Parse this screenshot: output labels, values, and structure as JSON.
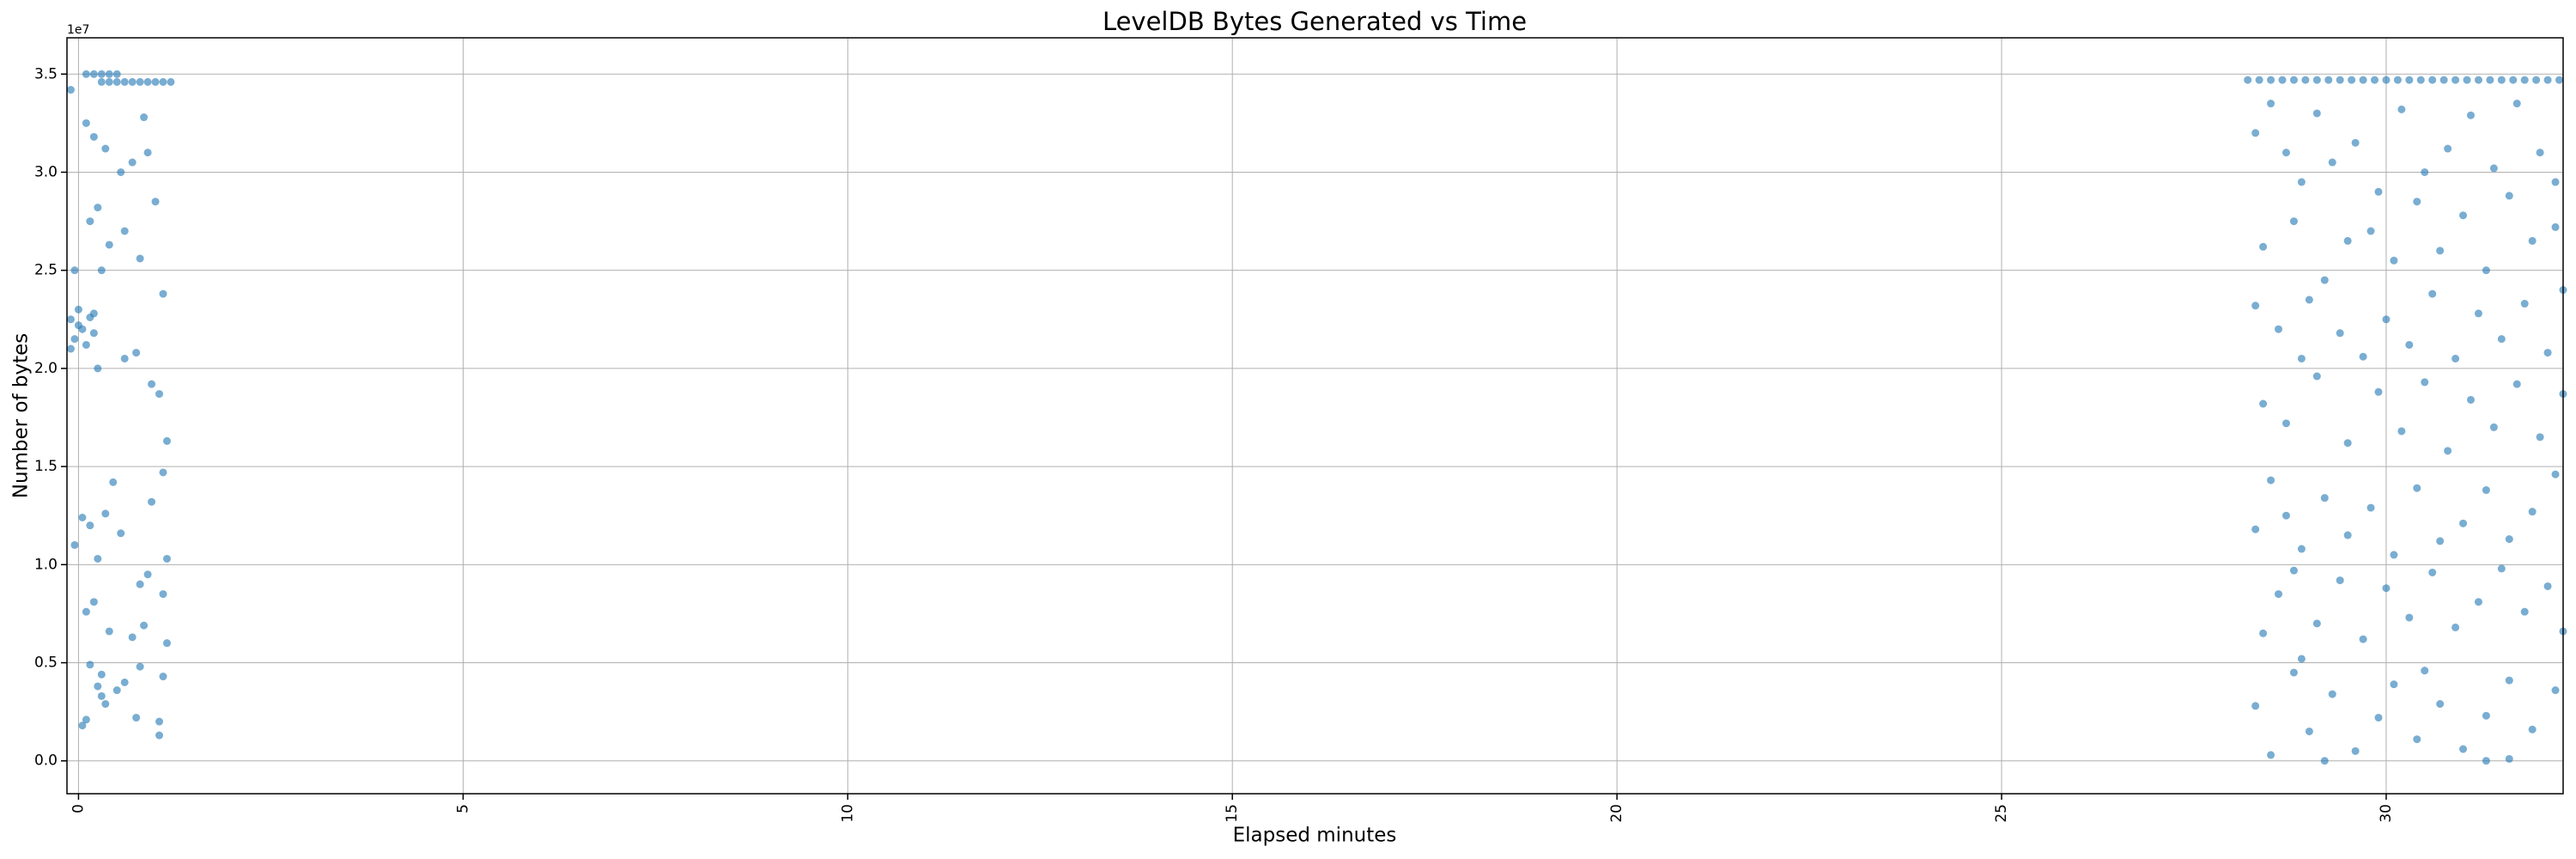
{
  "chart_data": {
    "type": "scatter",
    "title": "LevelDB Bytes Generated vs Time",
    "x_label": "Elapsed minutes",
    "y_label": "Number of bytes",
    "y_offset_label": "1e7",
    "color": "#1f77b4",
    "grid": true,
    "xlim": [
      -0.15,
      32.3
    ],
    "ylim": [
      -1675000,
      36850000
    ],
    "xticks": [
      0,
      5,
      10,
      15,
      20,
      25,
      30
    ],
    "yticks": [
      {
        "value": 0,
        "label": "0.0"
      },
      {
        "value": 5000000,
        "label": "0.5"
      },
      {
        "value": 10000000,
        "label": "1.0"
      },
      {
        "value": 15000000,
        "label": "1.5"
      },
      {
        "value": 20000000,
        "label": "2.0"
      },
      {
        "value": 25000000,
        "label": "2.5"
      },
      {
        "value": 30000000,
        "label": "3.0"
      },
      {
        "value": 35000000,
        "label": "3.5"
      }
    ],
    "x": [
      0.3,
      0.4,
      0.5,
      0.6,
      0.7,
      0.8,
      0.9,
      1.0,
      1.1,
      1.2,
      0.1,
      0.2,
      0.3,
      0.4,
      0.5,
      -0.1,
      -0.05,
      0,
      0.05,
      0.1,
      0.15,
      0.2,
      -0.1,
      0,
      0.2,
      -0.1,
      0.1,
      0.2,
      0.35,
      0.15,
      0.25,
      0.4,
      0.55,
      0.7,
      0.85,
      0.9,
      1.0,
      1.1,
      0.8,
      0.6,
      0.3,
      -0.05,
      0.25,
      0.6,
      0.75,
      0.95,
      1.05,
      1.15,
      1.1,
      0.95,
      0.45,
      0.35,
      0.15,
      0.05,
      -0.05,
      0.25,
      0.55,
      0.8,
      0.9,
      1.15,
      1.1,
      0.2,
      0.1,
      0.4,
      0.7,
      0.85,
      1.15,
      0.15,
      0.25,
      0.3,
      0.5,
      0.6,
      0.8,
      1.1,
      0.05,
      0.35,
      0.75,
      1.05,
      1.05,
      0.1,
      0.3,
      28.2,
      28.35,
      28.5,
      28.65,
      28.8,
      28.95,
      29.1,
      29.25,
      29.4,
      29.55,
      29.7,
      29.85,
      30.0,
      30.15,
      30.3,
      30.45,
      30.6,
      30.75,
      30.9,
      31.05,
      31.2,
      31.35,
      31.5,
      31.65,
      31.8,
      31.95,
      32.1,
      32.25,
      28.3,
      28.5,
      28.7,
      28.9,
      29.1,
      29.3,
      29.6,
      29.9,
      30.2,
      30.5,
      30.8,
      31.1,
      31.4,
      31.7,
      32.0,
      32.2,
      28.4,
      28.8,
      29.2,
      29.5,
      29.8,
      30.1,
      30.4,
      30.7,
      31.0,
      31.3,
      31.6,
      31.9,
      32.2,
      28.3,
      28.6,
      28.9,
      29.0,
      29.4,
      29.7,
      30.0,
      30.3,
      30.6,
      30.9,
      31.2,
      31.5,
      31.8,
      32.1,
      32.3,
      28.4,
      28.7,
      29.1,
      29.5,
      29.9,
      30.2,
      30.5,
      30.8,
      31.1,
      31.4,
      31.7,
      32.0,
      32.3,
      28.3,
      28.5,
      28.7,
      28.9,
      29.2,
      29.5,
      29.8,
      30.1,
      30.4,
      30.7,
      31.0,
      31.3,
      31.6,
      31.9,
      32.2,
      28.4,
      28.6,
      28.8,
      29.1,
      29.4,
      29.7,
      30.0,
      30.3,
      30.6,
      30.9,
      31.2,
      31.5,
      31.8,
      32.1,
      32.3,
      28.3,
      28.5,
      28.8,
      29.0,
      29.3,
      29.6,
      29.9,
      30.1,
      30.4,
      30.7,
      31.0,
      31.3,
      31.6,
      31.9,
      32.2,
      29.2,
      31.3,
      30.5,
      31.6,
      28.9
    ],
    "values": [
      34600000,
      34600000,
      34600000,
      34600000,
      34600000,
      34600000,
      34600000,
      34600000,
      34600000,
      34600000,
      35000000,
      35000000,
      35000000,
      35000000,
      35000000,
      22500000,
      21500000,
      23000000,
      22000000,
      21200000,
      22600000,
      21800000,
      21000000,
      22200000,
      22800000,
      34200000,
      32500000,
      31800000,
      31200000,
      27500000,
      28200000,
      26300000,
      30000000,
      30500000,
      32800000,
      31000000,
      28500000,
      23800000,
      25600000,
      27000000,
      25000000,
      25000000,
      20000000,
      20500000,
      20800000,
      19200000,
      18700000,
      16300000,
      14700000,
      13200000,
      14200000,
      12600000,
      12000000,
      12400000,
      11000000,
      10300000,
      11600000,
      9000000,
      9500000,
      10300000,
      8500000,
      8100000,
      7600000,
      6600000,
      6300000,
      6900000,
      6000000,
      4900000,
      3800000,
      3300000,
      3600000,
      4000000,
      4800000,
      4300000,
      1800000,
      2900000,
      2200000,
      1300000,
      2000000,
      2100000,
      4400000,
      34700000,
      34700000,
      34700000,
      34700000,
      34700000,
      34700000,
      34700000,
      34700000,
      34700000,
      34700000,
      34700000,
      34700000,
      34700000,
      34700000,
      34700000,
      34700000,
      34700000,
      34700000,
      34700000,
      34700000,
      34700000,
      34700000,
      34700000,
      34700000,
      34700000,
      34700000,
      34700000,
      34700000,
      32000000,
      33500000,
      31000000,
      29500000,
      33000000,
      30500000,
      31500000,
      29000000,
      33200000,
      30000000,
      31200000,
      32900000,
      30200000,
      33500000,
      31000000,
      29500000,
      26200000,
      27500000,
      24500000,
      26500000,
      27000000,
      25500000,
      28500000,
      26000000,
      27800000,
      25000000,
      28800000,
      26500000,
      27200000,
      23200000,
      22000000,
      20500000,
      23500000,
      21800000,
      20600000,
      22500000,
      21200000,
      23800000,
      20500000,
      22800000,
      21500000,
      23300000,
      20800000,
      24000000,
      18200000,
      17200000,
      19600000,
      16200000,
      18800000,
      16800000,
      19300000,
      15800000,
      18400000,
      17000000,
      19200000,
      16500000,
      18700000,
      11800000,
      14300000,
      12500000,
      10800000,
      13400000,
      11500000,
      12900000,
      10500000,
      13900000,
      11200000,
      12100000,
      13800000,
      11300000,
      12700000,
      14600000,
      6500000,
      8500000,
      9700000,
      7000000,
      9200000,
      6200000,
      8800000,
      7300000,
      9600000,
      6800000,
      8100000,
      9800000,
      7600000,
      8900000,
      6600000,
      2800000,
      300000,
      4500000,
      1500000,
      3400000,
      500000,
      2200000,
      3900000,
      1100000,
      2900000,
      600000,
      2300000,
      4100000,
      1600000,
      3600000,
      0,
      0,
      4600000,
      100000,
      5200000
    ]
  }
}
